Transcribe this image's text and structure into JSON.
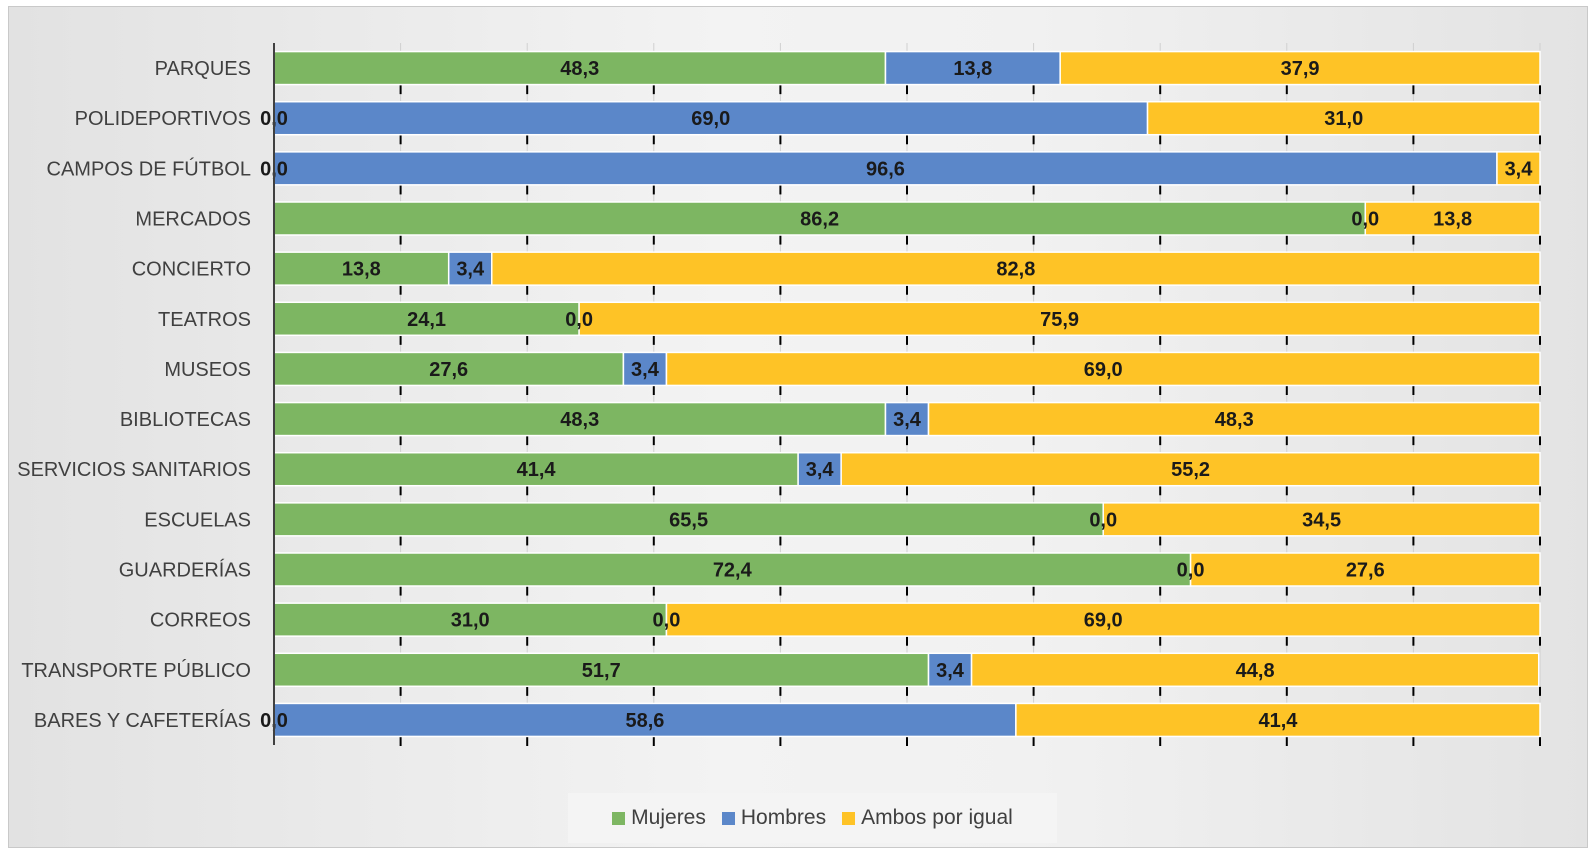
{
  "chart_data": {
    "type": "bar",
    "orientation": "horizontal",
    "stacked": true,
    "categories": [
      "PARQUES",
      "POLIDEPORTIVOS",
      "CAMPOS DE FÚTBOL",
      "MERCADOS",
      "CONCIERTO",
      "TEATROS",
      "MUSEOS",
      "BIBLIOTECAS",
      "SERVICIOS SANITARIOS",
      "ESCUELAS",
      "GUARDERÍAS",
      "CORREOS",
      "TRANSPORTE PÚBLICO",
      "BARES Y CAFETERÍAS"
    ],
    "series": [
      {
        "name": "Mujeres",
        "color": "#7db662",
        "values": [
          48.3,
          0.0,
          0.0,
          86.2,
          13.8,
          24.1,
          27.6,
          48.3,
          41.4,
          65.5,
          72.4,
          31.0,
          51.7,
          0.0
        ],
        "labels": [
          "48,3",
          "0,0",
          "0,0",
          "86,2",
          "13,8",
          "24,1",
          "27,6",
          "48,3",
          "41,4",
          "65,5",
          "72,4",
          "31,0",
          "51,7",
          "0,0"
        ]
      },
      {
        "name": "Hombres",
        "color": "#5b87c9",
        "values": [
          13.8,
          69.0,
          96.6,
          0.0,
          3.4,
          0.0,
          3.4,
          3.4,
          3.4,
          0.0,
          0.0,
          0.0,
          3.4,
          58.6
        ],
        "labels": [
          "13,8",
          "69,0",
          "96,6",
          "0,0",
          "3,4",
          "0,0",
          "3,4",
          "3,4",
          "3,4",
          "0,0",
          "0,0",
          "0,0",
          "3,4",
          "58,6"
        ]
      },
      {
        "name": "Ambos por igual",
        "color": "#fec326",
        "values": [
          37.9,
          31.0,
          3.4,
          13.8,
          82.8,
          75.9,
          69.0,
          48.3,
          55.2,
          34.5,
          27.6,
          69.0,
          44.8,
          41.4
        ],
        "labels": [
          "37,9",
          "31,0",
          "3,4",
          "13,8",
          "82,8",
          "75,9",
          "69,0",
          "48,3",
          "55,2",
          "34,5",
          "27,6",
          "69,0",
          "44,8",
          "41,4"
        ]
      }
    ],
    "xlim": [
      0,
      100
    ],
    "grid": true,
    "legend_position": "bottom"
  }
}
